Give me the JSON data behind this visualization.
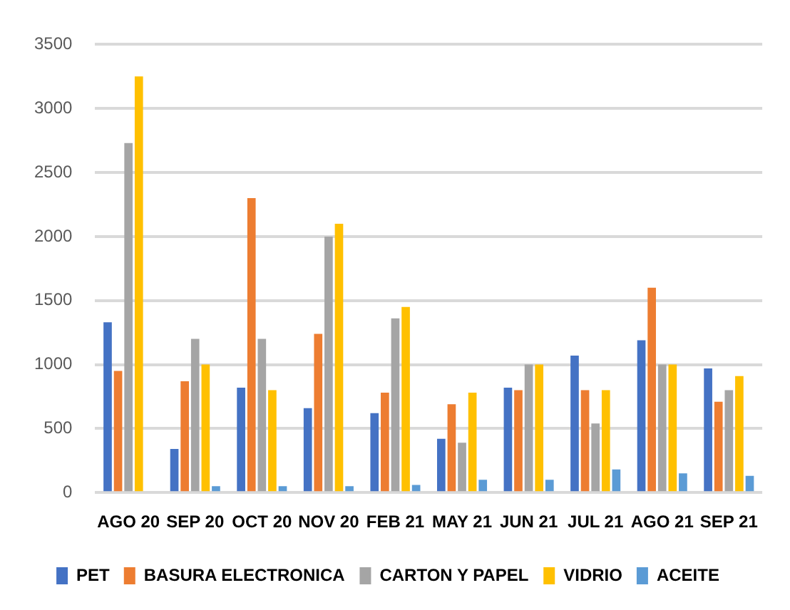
{
  "chart_data": {
    "type": "bar",
    "categories": [
      "AGO 20",
      "SEP 20",
      "OCT 20",
      "NOV 20",
      "FEB 21",
      "MAY 21",
      "JUN 21",
      "JUL 21",
      "AGO 21",
      "SEP 21"
    ],
    "series": [
      {
        "name": "PET",
        "color": "#4472c4",
        "values": [
          1330,
          340,
          820,
          660,
          620,
          420,
          820,
          1070,
          1190,
          970
        ]
      },
      {
        "name": "BASURA ELECTRONICA",
        "color": "#ed7d31",
        "values": [
          950,
          870,
          2300,
          1240,
          780,
          690,
          800,
          800,
          1600,
          710
        ]
      },
      {
        "name": "CARTON Y PAPEL",
        "color": "#a5a5a5",
        "values": [
          2730,
          1200,
          1200,
          2000,
          1360,
          390,
          1000,
          540,
          1000,
          800
        ]
      },
      {
        "name": "VIDRIO",
        "color": "#ffc000",
        "values": [
          3250,
          1000,
          800,
          2100,
          1450,
          780,
          1000,
          800,
          1000,
          910
        ]
      },
      {
        "name": "ACEITE",
        "color": "#5b9bd5",
        "values": [
          null,
          50,
          50,
          50,
          60,
          100,
          100,
          180,
          150,
          130
        ]
      }
    ],
    "ylim": [
      0,
      3500
    ],
    "yticks": [
      0,
      500,
      1000,
      1500,
      2000,
      2500,
      3000,
      3500
    ],
    "grid": "y",
    "legend": "bottom"
  }
}
